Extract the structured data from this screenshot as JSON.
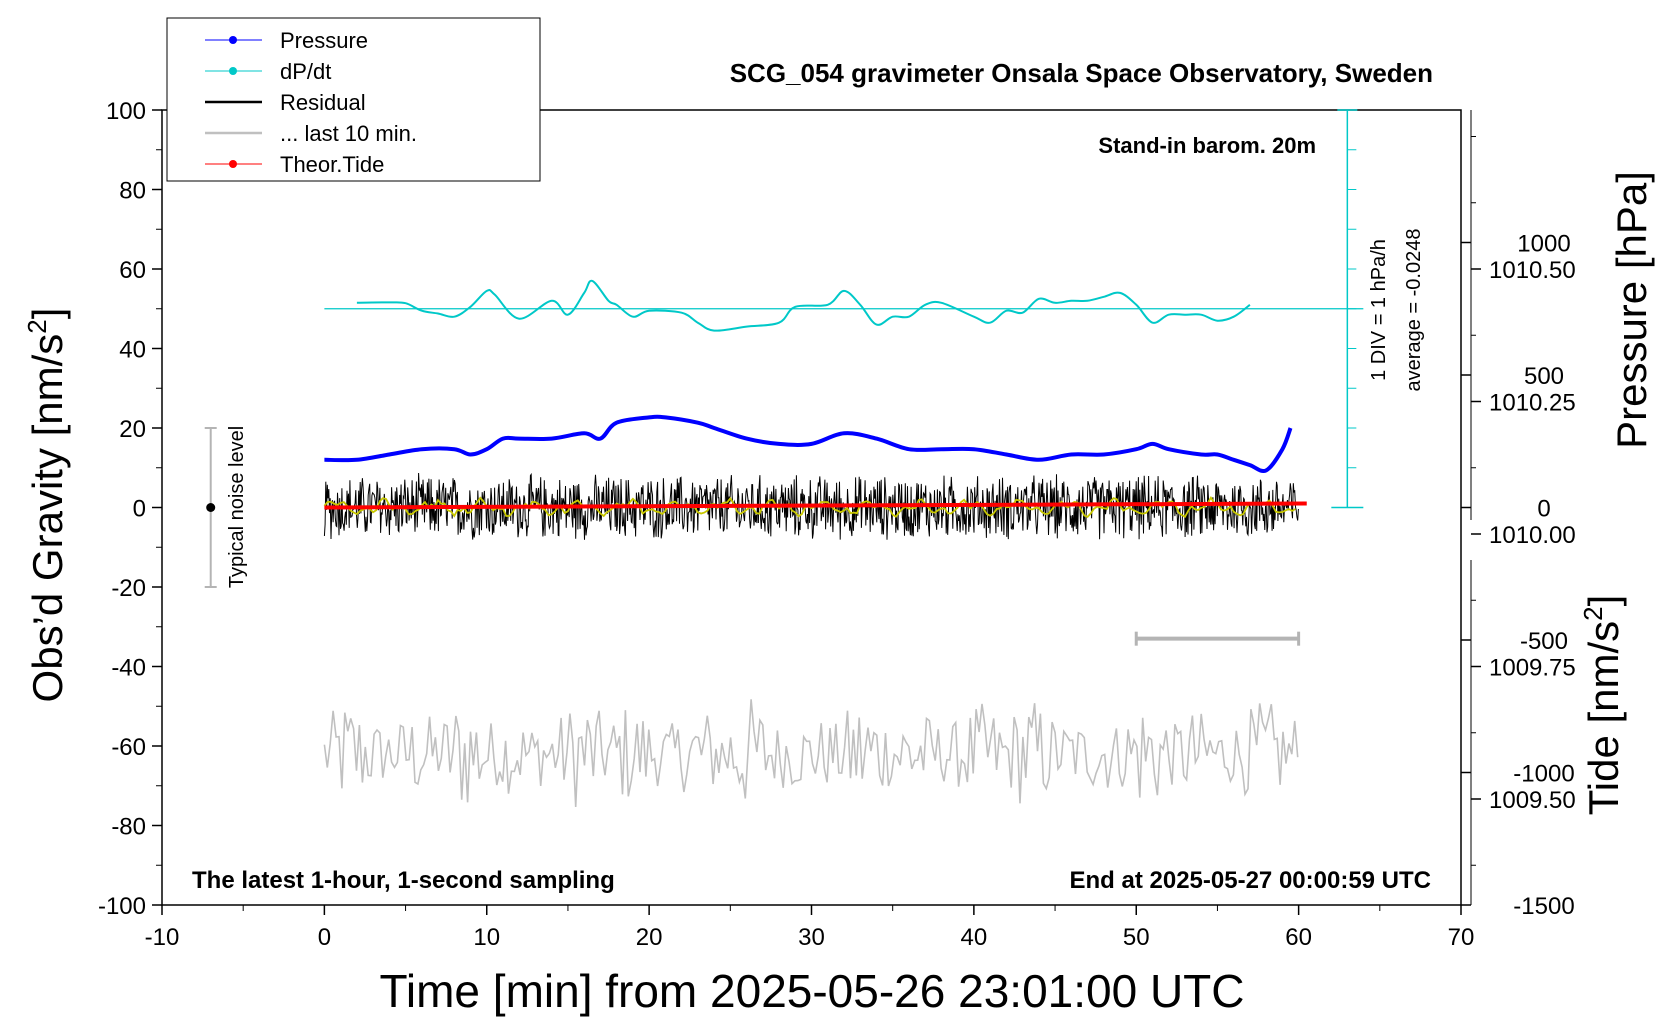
{
  "chart_data": {
    "type": "line",
    "title": "SCG_054 gravimeter Onsala Space Observatory, Sweden",
    "xlabel": "Time [min] from 2025-05-26 23:01:00 UTC",
    "ylabel_left": "Obs’d Gravity [nm/s",
    "ylabel_left_sup": "2",
    "ylabel_left_end": "]",
    "ylabel_right_top": "Pressure [hPa]",
    "ylabel_right_bottom": "Tide [nm/s",
    "ylabel_right_bottom_sup": "2",
    "ylabel_right_bottom_end": "]",
    "xlim": [
      -10,
      70
    ],
    "ylim": [
      -100,
      100
    ],
    "pressure_lim": [
      1009.3,
      1010.8
    ],
    "tide_lim": [
      -1500,
      1500
    ],
    "x_ticks": [
      "-10",
      "0",
      "10",
      "20",
      "30",
      "40",
      "50",
      "60",
      "70"
    ],
    "y_ticks": [
      "-100",
      "-80",
      "-60",
      "-40",
      "-20",
      "0",
      "20",
      "40",
      "60",
      "80",
      "100"
    ],
    "pressure_ticks": [
      "1009.50",
      "1009.75",
      "1010.00",
      "1010.25",
      "1010.50"
    ],
    "tide_ticks": [
      "-1500",
      "-1000",
      "-500",
      "0",
      "500",
      "1000"
    ],
    "legend": {
      "placement": "top-left",
      "entries": [
        {
          "label": "Pressure",
          "color": "#0000ff",
          "marker": "dot"
        },
        {
          "label": "dP/dt",
          "color": "#00c8c8",
          "marker": "dot"
        },
        {
          "label": "Residual",
          "color": "#000000",
          "marker": "none"
        },
        {
          "label": "... last 10 min.",
          "color": "#c0c0c0",
          "marker": "none"
        },
        {
          "label": "Theor.Tide",
          "color": "#ff0000",
          "marker": "dot"
        }
      ]
    },
    "annotations": {
      "barometer": "Stand-in barom. 20m",
      "div_scale": "1 DIV = 1 hPa/h",
      "average": "average = -0.0248",
      "noise": "Typical noise level",
      "latest": "The latest 1-hour, 1-second sampling",
      "end_time": "End at 2025-05-27 00:00:59 UTC"
    },
    "colors": {
      "pressure": "#0000ff",
      "dpdt": "#00c8c8",
      "residual": "#000000",
      "residual_smooth": "#c8c800",
      "last10": "#c0c0c0",
      "tide": "#ff0000",
      "scale_bar": "#b4b4b4"
    },
    "series": [
      {
        "name": "Pressure",
        "unit": "hPa",
        "x": [
          0,
          2,
          4,
          6,
          8,
          9,
          10,
          11,
          12,
          14,
          16,
          17,
          18,
          20,
          21,
          23,
          24,
          26,
          28,
          30,
          32,
          34,
          36,
          38,
          40,
          42,
          44,
          46,
          48,
          50,
          51,
          52,
          54,
          55,
          56,
          57,
          58,
          59,
          59.5
        ],
        "values": [
          1010.14,
          1010.14,
          1010.15,
          1010.16,
          1010.16,
          1010.15,
          1010.16,
          1010.18,
          1010.18,
          1010.18,
          1010.19,
          1010.18,
          1010.21,
          1010.22,
          1010.22,
          1010.21,
          1010.2,
          1010.18,
          1010.17,
          1010.17,
          1010.19,
          1010.18,
          1010.16,
          1010.16,
          1010.16,
          1010.15,
          1010.14,
          1010.15,
          1010.15,
          1010.16,
          1010.17,
          1010.16,
          1010.15,
          1010.15,
          1010.14,
          1010.13,
          1010.12,
          1010.16,
          1010.2
        ]
      },
      {
        "name": "dP/dt",
        "unit": "hPa/h",
        "x": [
          2,
          4,
          5,
          6,
          7,
          8,
          9,
          10,
          10.5,
          12,
          14,
          15,
          16,
          16.5,
          17.5,
          18,
          19,
          20,
          22,
          23,
          24,
          26,
          28,
          29,
          31,
          32,
          33,
          34,
          35,
          36,
          37,
          38,
          40,
          41,
          42,
          43,
          44,
          45,
          46,
          47,
          48,
          49,
          50,
          51,
          52,
          53,
          54,
          55,
          56,
          57
        ],
        "values": [
          0.15,
          0.16,
          0.14,
          -0.05,
          -0.12,
          -0.2,
          0.05,
          0.45,
          0.35,
          -0.25,
          0.2,
          -0.15,
          0.4,
          0.7,
          0.2,
          0.1,
          -0.2,
          -0.05,
          -0.1,
          -0.35,
          -0.55,
          -0.45,
          -0.35,
          0.05,
          0.1,
          0.45,
          0.1,
          -0.4,
          -0.2,
          -0.2,
          0.1,
          0.15,
          -0.2,
          -0.35,
          -0.05,
          -0.1,
          0.25,
          0.15,
          0.2,
          0.2,
          0.3,
          0.4,
          0.1,
          -0.35,
          -0.15,
          -0.15,
          -0.15,
          -0.3,
          -0.2,
          0.1
        ]
      },
      {
        "name": "Residual",
        "unit": "nm/s2",
        "x_range": [
          0,
          60
        ],
        "amplitude": 9,
        "center": 0
      },
      {
        "name": "... last 10 min.",
        "unit": "nm/s2",
        "x_range": [
          0,
          60
        ],
        "amplitude": 15,
        "center": -62
      },
      {
        "name": "Theor.Tide",
        "unit": "nm/s2",
        "x": [
          0,
          60.5
        ],
        "values": [
          0,
          15
        ]
      }
    ],
    "noise_bar": {
      "x": -7,
      "y": 0,
      "low": -20,
      "high": 20
    },
    "scale_bar": {
      "x_start": 50,
      "x_end": 60,
      "y": -33
    },
    "div_axis": {
      "x": 63,
      "y_top": 100,
      "y_bottom": 0,
      "zero_y": 50
    }
  }
}
